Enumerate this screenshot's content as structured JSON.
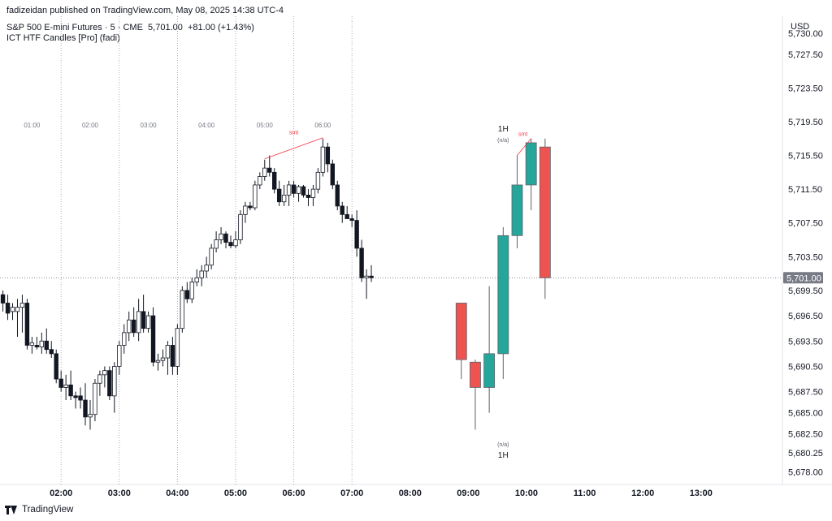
{
  "header": {
    "publisher": "fadizeidan published on TradingView.com, May 08, 2025 14:38 UTC-4",
    "symbol_line": "S&P 500 E-mini Futures · 5 · CME",
    "price": "5,701.00",
    "change": "+81.00 (+1.43%)",
    "indicator": "ICT HTF Candles [Pro] (fadi)"
  },
  "currency": "USD",
  "footer": {
    "brand": "TradingView"
  },
  "chart_data": {
    "type": "candlestick",
    "y_axis": {
      "ylim": [
        5676.5,
        5732.0
      ],
      "ticks": [
        "5,730.00",
        "5,727.50",
        "5,723.50",
        "5,719.50",
        "5,715.50",
        "5,711.50",
        "5,707.50",
        "5,703.50",
        "5,699.50",
        "5,696.50",
        "5,693.50",
        "5,690.50",
        "5,687.50",
        "5,685.00",
        "5,682.50",
        "5,680.25",
        "5,678.00"
      ],
      "last_price_label": "5,701.00",
      "last_price": 5701.0
    },
    "x_axis": {
      "ticks": [
        "02:00",
        "03:00",
        "04:00",
        "05:00",
        "06:00",
        "07:00",
        "08:00",
        "09:00",
        "10:00",
        "11:00",
        "12:00",
        "13:00"
      ],
      "tick_positions": [
        2,
        3,
        4,
        5,
        6,
        7,
        8,
        9,
        10,
        11,
        12,
        13
      ],
      "xlim": [
        0.95,
        14.4
      ]
    },
    "session_labels": [
      "01:00",
      "02:00",
      "03:00",
      "04:00",
      "05:00",
      "06:00"
    ],
    "smt_label": "smt",
    "htf": {
      "label": "1H",
      "sublabel": "(n/a)",
      "candles": [
        {
          "o": 5698.0,
          "h": 5698.0,
          "l": 5689.0,
          "c": 5691.3
        },
        {
          "o": 5691.0,
          "h": 5691.3,
          "l": 5683.0,
          "c": 5688.0
        },
        {
          "o": 5688.0,
          "h": 5700.0,
          "l": 5685.0,
          "c": 5692.0
        },
        {
          "o": 5692.0,
          "h": 5707.0,
          "l": 5689.0,
          "c": 5706.0
        },
        {
          "o": 5706.0,
          "h": 5715.5,
          "l": 5704.5,
          "c": 5712.0
        },
        {
          "o": 5712.0,
          "h": 5717.5,
          "l": 5709.0,
          "c": 5717.0
        },
        {
          "o": 5716.5,
          "h": 5717.5,
          "l": 5698.5,
          "c": 5701.0
        }
      ]
    },
    "ltf_candles": [
      {
        "o": 5699.0,
        "h": 5699.5,
        "l": 5697.0,
        "c": 5698.0
      },
      {
        "o": 5698.0,
        "h": 5699.0,
        "l": 5696.0,
        "c": 5696.8
      },
      {
        "o": 5697.0,
        "h": 5698.0,
        "l": 5696.0,
        "c": 5697.5
      },
      {
        "o": 5697.0,
        "h": 5698.5,
        "l": 5694.0,
        "c": 5697.5
      },
      {
        "o": 5697.5,
        "h": 5699.0,
        "l": 5694.5,
        "c": 5698.0
      },
      {
        "o": 5698.0,
        "h": 5698.5,
        "l": 5692.5,
        "c": 5693.0
      },
      {
        "o": 5693.0,
        "h": 5694.0,
        "l": 5692.0,
        "c": 5693.3
      },
      {
        "o": 5693.0,
        "h": 5694.0,
        "l": 5692.5,
        "c": 5692.8
      },
      {
        "o": 5692.8,
        "h": 5694.5,
        "l": 5692.0,
        "c": 5693.5
      },
      {
        "o": 5693.5,
        "h": 5695.0,
        "l": 5692.0,
        "c": 5692.5
      },
      {
        "o": 5692.5,
        "h": 5693.5,
        "l": 5691.5,
        "c": 5692.0
      },
      {
        "o": 5692.0,
        "h": 5692.5,
        "l": 5688.5,
        "c": 5689.0
      },
      {
        "o": 5689.0,
        "h": 5690.0,
        "l": 5687.5,
        "c": 5688.0
      },
      {
        "o": 5688.0,
        "h": 5689.5,
        "l": 5686.5,
        "c": 5688.3
      },
      {
        "o": 5688.3,
        "h": 5690.0,
        "l": 5686.5,
        "c": 5687.0
      },
      {
        "o": 5687.0,
        "h": 5687.5,
        "l": 5685.5,
        "c": 5686.8
      },
      {
        "o": 5687.0,
        "h": 5688.0,
        "l": 5685.5,
        "c": 5686.5
      },
      {
        "o": 5686.5,
        "h": 5688.5,
        "l": 5683.5,
        "c": 5684.5
      },
      {
        "o": 5684.5,
        "h": 5686.5,
        "l": 5683.0,
        "c": 5684.8
      },
      {
        "o": 5684.8,
        "h": 5689.0,
        "l": 5684.0,
        "c": 5688.5
      },
      {
        "o": 5688.5,
        "h": 5690.0,
        "l": 5687.0,
        "c": 5689.5
      },
      {
        "o": 5689.5,
        "h": 5690.5,
        "l": 5688.0,
        "c": 5690.0
      },
      {
        "o": 5690.0,
        "h": 5690.5,
        "l": 5686.5,
        "c": 5687.0
      },
      {
        "o": 5687.0,
        "h": 5691.0,
        "l": 5685.0,
        "c": 5690.5
      },
      {
        "o": 5690.5,
        "h": 5693.5,
        "l": 5689.5,
        "c": 5693.0
      },
      {
        "o": 5693.0,
        "h": 5695.5,
        "l": 5692.0,
        "c": 5694.5
      },
      {
        "o": 5694.5,
        "h": 5697.0,
        "l": 5693.5,
        "c": 5696.0
      },
      {
        "o": 5696.0,
        "h": 5697.5,
        "l": 5694.0,
        "c": 5694.5
      },
      {
        "o": 5694.5,
        "h": 5698.5,
        "l": 5693.5,
        "c": 5697.0
      },
      {
        "o": 5697.0,
        "h": 5699.0,
        "l": 5694.5,
        "c": 5695.0
      },
      {
        "o": 5695.0,
        "h": 5697.0,
        "l": 5694.5,
        "c": 5696.5
      },
      {
        "o": 5696.5,
        "h": 5697.5,
        "l": 5690.5,
        "c": 5691.0
      },
      {
        "o": 5691.0,
        "h": 5692.0,
        "l": 5690.0,
        "c": 5691.2
      },
      {
        "o": 5691.2,
        "h": 5692.5,
        "l": 5690.5,
        "c": 5691.5
      },
      {
        "o": 5691.5,
        "h": 5693.5,
        "l": 5689.5,
        "c": 5693.0
      },
      {
        "o": 5693.0,
        "h": 5694.0,
        "l": 5689.5,
        "c": 5690.5
      },
      {
        "o": 5690.5,
        "h": 5695.5,
        "l": 5689.5,
        "c": 5695.0
      },
      {
        "o": 5695.0,
        "h": 5700.0,
        "l": 5694.5,
        "c": 5699.5
      },
      {
        "o": 5699.5,
        "h": 5700.5,
        "l": 5698.0,
        "c": 5698.5
      },
      {
        "o": 5698.5,
        "h": 5701.0,
        "l": 5698.0,
        "c": 5700.5
      },
      {
        "o": 5700.5,
        "h": 5702.0,
        "l": 5700.0,
        "c": 5701.0
      },
      {
        "o": 5701.0,
        "h": 5702.5,
        "l": 5700.0,
        "c": 5701.8
      },
      {
        "o": 5701.8,
        "h": 5703.5,
        "l": 5701.0,
        "c": 5702.5
      },
      {
        "o": 5702.5,
        "h": 5705.0,
        "l": 5702.0,
        "c": 5704.5
      },
      {
        "o": 5704.5,
        "h": 5706.5,
        "l": 5704.0,
        "c": 5705.5
      },
      {
        "o": 5705.5,
        "h": 5707.0,
        "l": 5705.0,
        "c": 5706.2
      },
      {
        "o": 5706.2,
        "h": 5706.5,
        "l": 5704.5,
        "c": 5705.2
      },
      {
        "o": 5705.2,
        "h": 5706.0,
        "l": 5704.5,
        "c": 5704.8
      },
      {
        "o": 5704.8,
        "h": 5706.5,
        "l": 5704.5,
        "c": 5705.5
      },
      {
        "o": 5705.5,
        "h": 5709.0,
        "l": 5705.0,
        "c": 5708.5
      },
      {
        "o": 5708.5,
        "h": 5710.0,
        "l": 5707.5,
        "c": 5709.5
      },
      {
        "o": 5709.5,
        "h": 5710.0,
        "l": 5709.0,
        "c": 5709.3
      },
      {
        "o": 5709.3,
        "h": 5712.5,
        "l": 5709.0,
        "c": 5712.0
      },
      {
        "o": 5712.0,
        "h": 5713.5,
        "l": 5711.5,
        "c": 5713.0
      },
      {
        "o": 5713.0,
        "h": 5715.0,
        "l": 5712.5,
        "c": 5714.0
      },
      {
        "o": 5714.0,
        "h": 5715.5,
        "l": 5713.0,
        "c": 5713.5
      },
      {
        "o": 5713.5,
        "h": 5714.0,
        "l": 5711.0,
        "c": 5711.5
      },
      {
        "o": 5711.5,
        "h": 5712.5,
        "l": 5709.5,
        "c": 5710.0
      },
      {
        "o": 5710.0,
        "h": 5712.0,
        "l": 5709.5,
        "c": 5710.8
      },
      {
        "o": 5710.8,
        "h": 5712.5,
        "l": 5709.5,
        "c": 5712.0
      },
      {
        "o": 5712.0,
        "h": 5712.5,
        "l": 5710.5,
        "c": 5711.0
      },
      {
        "o": 5711.0,
        "h": 5712.0,
        "l": 5710.0,
        "c": 5711.8
      },
      {
        "o": 5711.8,
        "h": 5712.0,
        "l": 5710.5,
        "c": 5710.8
      },
      {
        "o": 5710.8,
        "h": 5711.5,
        "l": 5709.5,
        "c": 5710.5
      },
      {
        "o": 5710.5,
        "h": 5712.0,
        "l": 5709.5,
        "c": 5711.5
      },
      {
        "o": 5711.5,
        "h": 5714.0,
        "l": 5711.0,
        "c": 5713.5
      },
      {
        "o": 5713.5,
        "h": 5717.5,
        "l": 5713.0,
        "c": 5716.5
      },
      {
        "o": 5716.5,
        "h": 5717.0,
        "l": 5713.5,
        "c": 5714.5
      },
      {
        "o": 5714.5,
        "h": 5715.0,
        "l": 5711.5,
        "c": 5712.0
      },
      {
        "o": 5712.0,
        "h": 5712.5,
        "l": 5709.0,
        "c": 5709.5
      },
      {
        "o": 5709.5,
        "h": 5710.0,
        "l": 5707.5,
        "c": 5708.5
      },
      {
        "o": 5708.5,
        "h": 5709.5,
        "l": 5708.0,
        "c": 5708.0
      },
      {
        "o": 5708.0,
        "h": 5708.5,
        "l": 5707.0,
        "c": 5707.8
      },
      {
        "o": 5707.8,
        "h": 5709.0,
        "l": 5703.5,
        "c": 5704.5
      },
      {
        "o": 5704.5,
        "h": 5705.5,
        "l": 5700.5,
        "c": 5701.0
      },
      {
        "o": 5701.0,
        "h": 5702.0,
        "l": 5698.5,
        "c": 5701.2
      },
      {
        "o": 5701.2,
        "h": 5702.5,
        "l": 5700.5,
        "c": 5701.0
      }
    ]
  }
}
